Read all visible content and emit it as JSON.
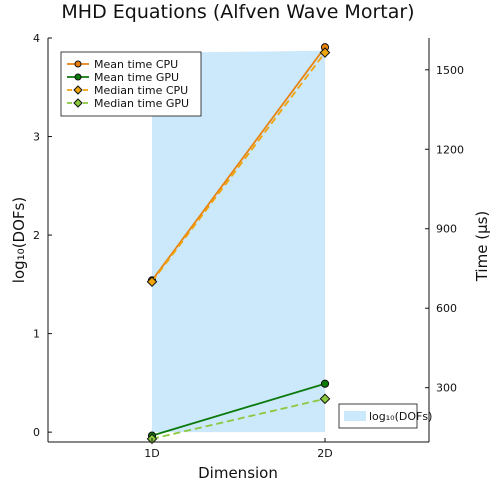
{
  "chart_data": {
    "type": "line",
    "title": "MHD Equations (Alfven Wave Mortar)",
    "xlabel": "Dimension",
    "ylabel_left": "log₁₀(DOFs)",
    "ylabel_right": "Time (μs)",
    "categories": [
      "1D",
      "2D"
    ],
    "x_ticks": [
      "1D",
      "2D"
    ],
    "left_axis": {
      "ylim": [
        -0.1,
        4.0
      ],
      "ticks": [
        "0",
        "1",
        "2",
        "3",
        "4"
      ],
      "tick_values": [
        0,
        1,
        2,
        3,
        4
      ]
    },
    "right_axis": {
      "ylim": [
        95,
        1620
      ],
      "ticks": [
        "300",
        "600",
        "900",
        "1200",
        "1500"
      ],
      "tick_values": [
        300,
        600,
        900,
        1200,
        1500
      ]
    },
    "grid": false,
    "area": {
      "name": "log₁₀(DOFs)",
      "values": [
        3.85,
        3.87
      ],
      "axis": "left",
      "color": "#cce8fb"
    },
    "series": [
      {
        "name": "Mean time CPU",
        "values": [
          705,
          1585
        ],
        "axis": "right",
        "color": "#e8820c",
        "dash": false,
        "marker": "circle"
      },
      {
        "name": "Mean time GPU",
        "values": [
          119,
          315
        ],
        "axis": "right",
        "color": "#0b7a0b",
        "dash": false,
        "marker": "circle"
      },
      {
        "name": "Median time CPU",
        "values": [
          700,
          1565
        ],
        "axis": "right",
        "color": "#f0a50a",
        "dash": true,
        "marker": "diamond"
      },
      {
        "name": "Median time GPU",
        "values": [
          107,
          258
        ],
        "axis": "right",
        "color": "#8ac83c",
        "dash": true,
        "marker": "diamond"
      }
    ],
    "legend_lines_position": "top-left",
    "legend_area_position": "bottom-right"
  }
}
